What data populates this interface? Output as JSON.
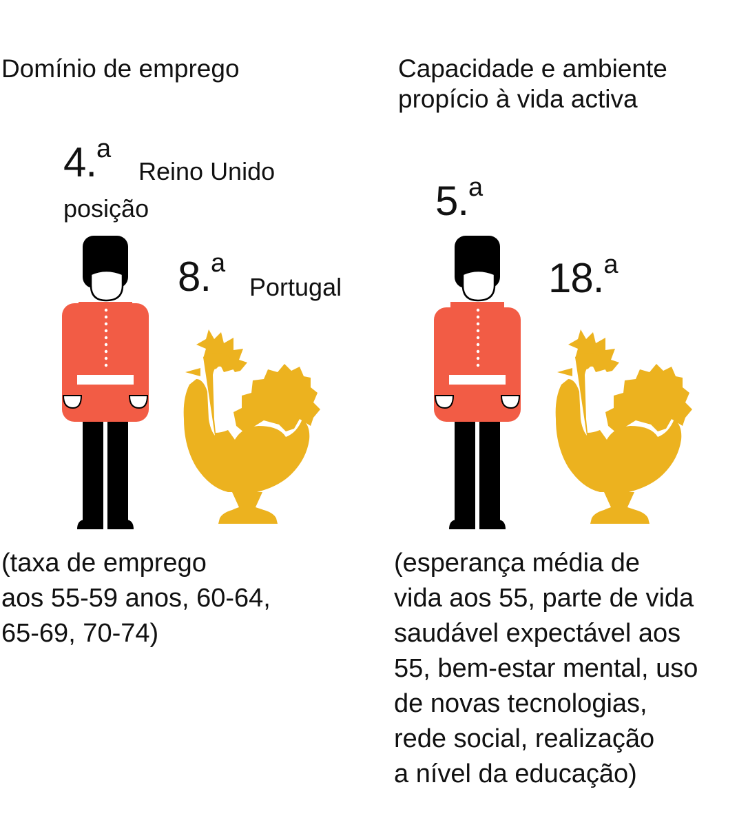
{
  "panels": {
    "left": {
      "heading": "Domínio de emprego",
      "uk_rank_number": "4.",
      "uk_rank_suffix": "a",
      "uk_label": "Reino Unido",
      "rank_caption": "posição",
      "pt_rank_number": "8.",
      "pt_rank_suffix": "a",
      "pt_label": "Portugal",
      "note_lines": [
        "(taxa de emprego",
        "aos 55-59 anos, 60-64,",
        "65-69, 70-74)"
      ]
    },
    "right": {
      "heading_lines": [
        "Capacidade e ambiente",
        "propício à vida activa"
      ],
      "uk_rank_number": "5.",
      "uk_rank_suffix": "a",
      "pt_rank_number": "18.",
      "pt_rank_suffix": "a",
      "note_lines": [
        "(esperança média de",
        "vida aos 55, parte de vida",
        "saudável expectável aos",
        "55, bem-estar mental, uso",
        "de novas tecnologias,",
        "rede social, realização",
        "a nível da educação)"
      ]
    }
  },
  "icons": {
    "uk": "royal-guard-icon",
    "pt": "rooster-icon"
  },
  "colors": {
    "guard_tunic": "#f25c45",
    "guard_hat_trousers": "#000000",
    "rooster": "#ecb21f",
    "text": "#111111"
  }
}
